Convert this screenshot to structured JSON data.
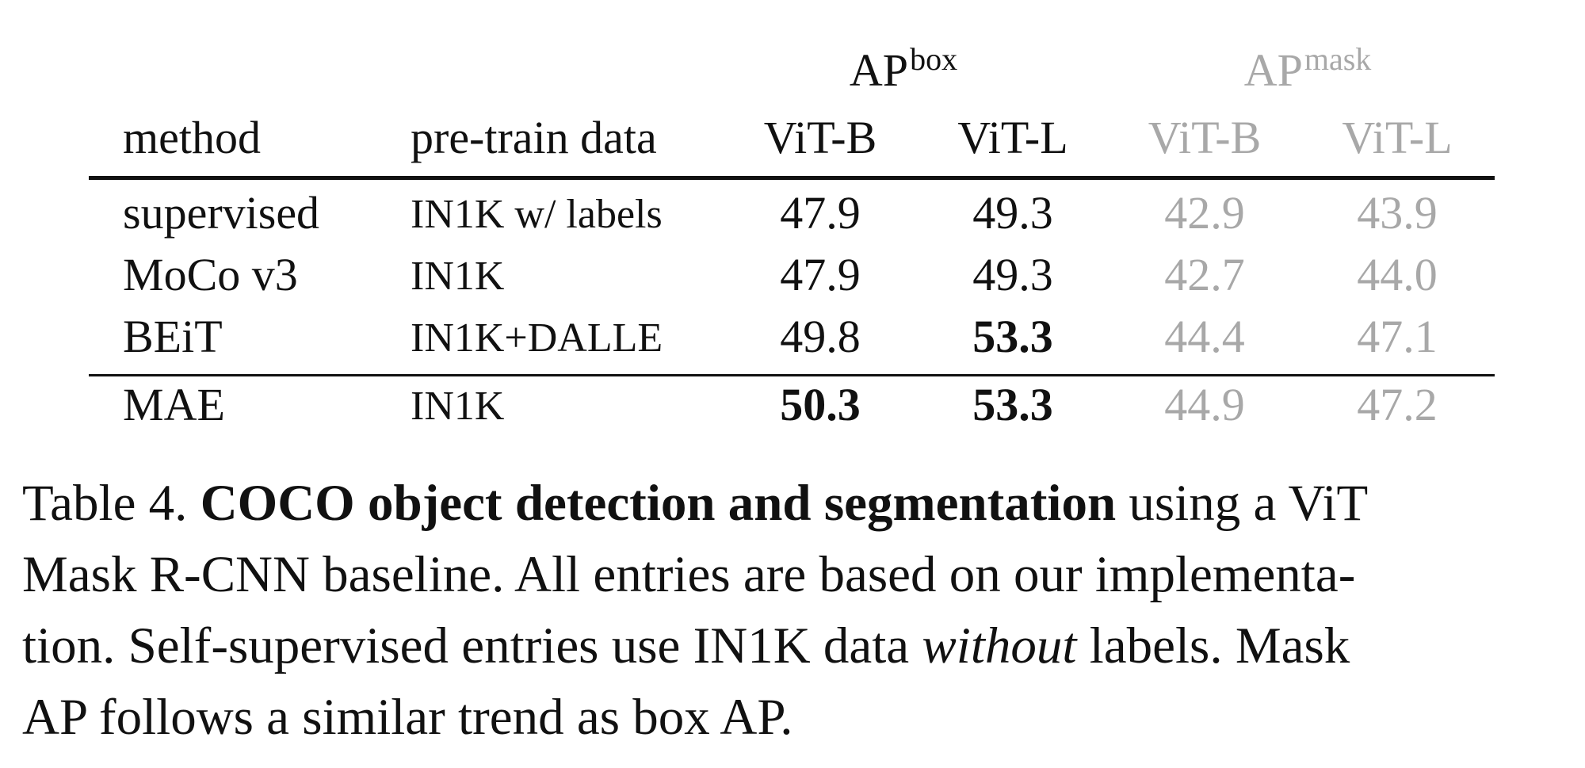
{
  "table": {
    "group_headers": [
      {
        "base": "AP",
        "sup": "box"
      },
      {
        "base": "AP",
        "sup": "mask"
      }
    ],
    "columns": [
      "method",
      "pre-train data",
      "ViT-B",
      "ViT-L",
      "ViT-B",
      "ViT-L"
    ],
    "rows": [
      {
        "method": "supervised",
        "data": "IN1K w/ labels",
        "box_b": "47.9",
        "box_l": "49.3",
        "mask_b": "42.9",
        "mask_l": "43.9"
      },
      {
        "method": "MoCo v3",
        "data": "IN1K",
        "box_b": "47.9",
        "box_l": "49.3",
        "mask_b": "42.7",
        "mask_l": "44.0"
      },
      {
        "method": "BEiT",
        "data": "IN1K+DALLE",
        "box_b": "49.8",
        "box_l": "53.3",
        "mask_b": "44.4",
        "mask_l": "47.1"
      },
      {
        "method": "MAE",
        "data": "IN1K",
        "box_b": "50.3",
        "box_l": "53.3",
        "mask_b": "44.9",
        "mask_l": "47.2"
      }
    ]
  },
  "caption": {
    "label": "Table 4.",
    "bold": "COCO object detection and segmentation",
    "line1_rest": " using a ViT",
    "line2": "Mask R-CNN baseline.  All entries are based on our implementa-",
    "line3_a": "tion.  Self-supervised entries use IN1K data ",
    "line3_italic": "without",
    "line3_b": " labels.  Mask",
    "line4": "AP follows a similar trend as box AP."
  }
}
